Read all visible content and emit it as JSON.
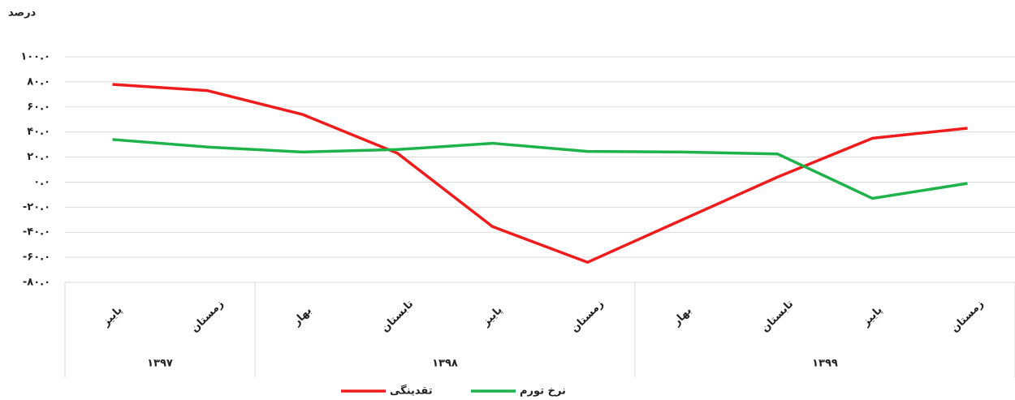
{
  "chart_data": {
    "type": "line",
    "y_label": "درصد",
    "categories": [
      "پاییز",
      "زمستان",
      "بهار",
      "تابستان",
      "پاییز",
      "زمستان",
      "بهار",
      "تابستان",
      "پاییز",
      "زمستان"
    ],
    "x_groups": [
      "۱۳۹۷",
      "۱۳۹۷",
      "۱۳۹۸",
      "۱۳۹۸",
      "۱۳۹۸",
      "۱۳۹۸",
      "۱۳۹۹",
      "۱۳۹۹",
      "۱۳۹۹",
      "۱۳۹۹"
    ],
    "series": [
      {
        "name": "تقدینگی",
        "color": "#ee1c1c",
        "values": [
          78,
          73,
          54,
          23,
          -35.5,
          -64,
          -30,
          4,
          35,
          43
        ]
      },
      {
        "name": "نرخ تورم",
        "color": "#1db34a",
        "values": [
          34,
          28,
          24,
          26,
          31,
          24.5,
          24,
          22.5,
          -13,
          -1
        ]
      }
    ],
    "ylim": [
      -80,
      100
    ],
    "yticks": [
      {
        "value": 100,
        "label": "۱۰۰.۰"
      },
      {
        "value": 80,
        "label": "۸۰.۰"
      },
      {
        "value": 60,
        "label": "۶۰.۰"
      },
      {
        "value": 40,
        "label": "۴۰.۰"
      },
      {
        "value": 20,
        "label": "۲۰.۰"
      },
      {
        "value": 0,
        "label": "۰.۰"
      },
      {
        "value": -20,
        "label": "-۲۰.۰"
      },
      {
        "value": -40,
        "label": "-۴۰.۰"
      },
      {
        "value": -60,
        "label": "-۶۰.۰"
      },
      {
        "value": -80,
        "label": "-۸۰.۰"
      }
    ],
    "grid": true,
    "legend": "bottom"
  }
}
